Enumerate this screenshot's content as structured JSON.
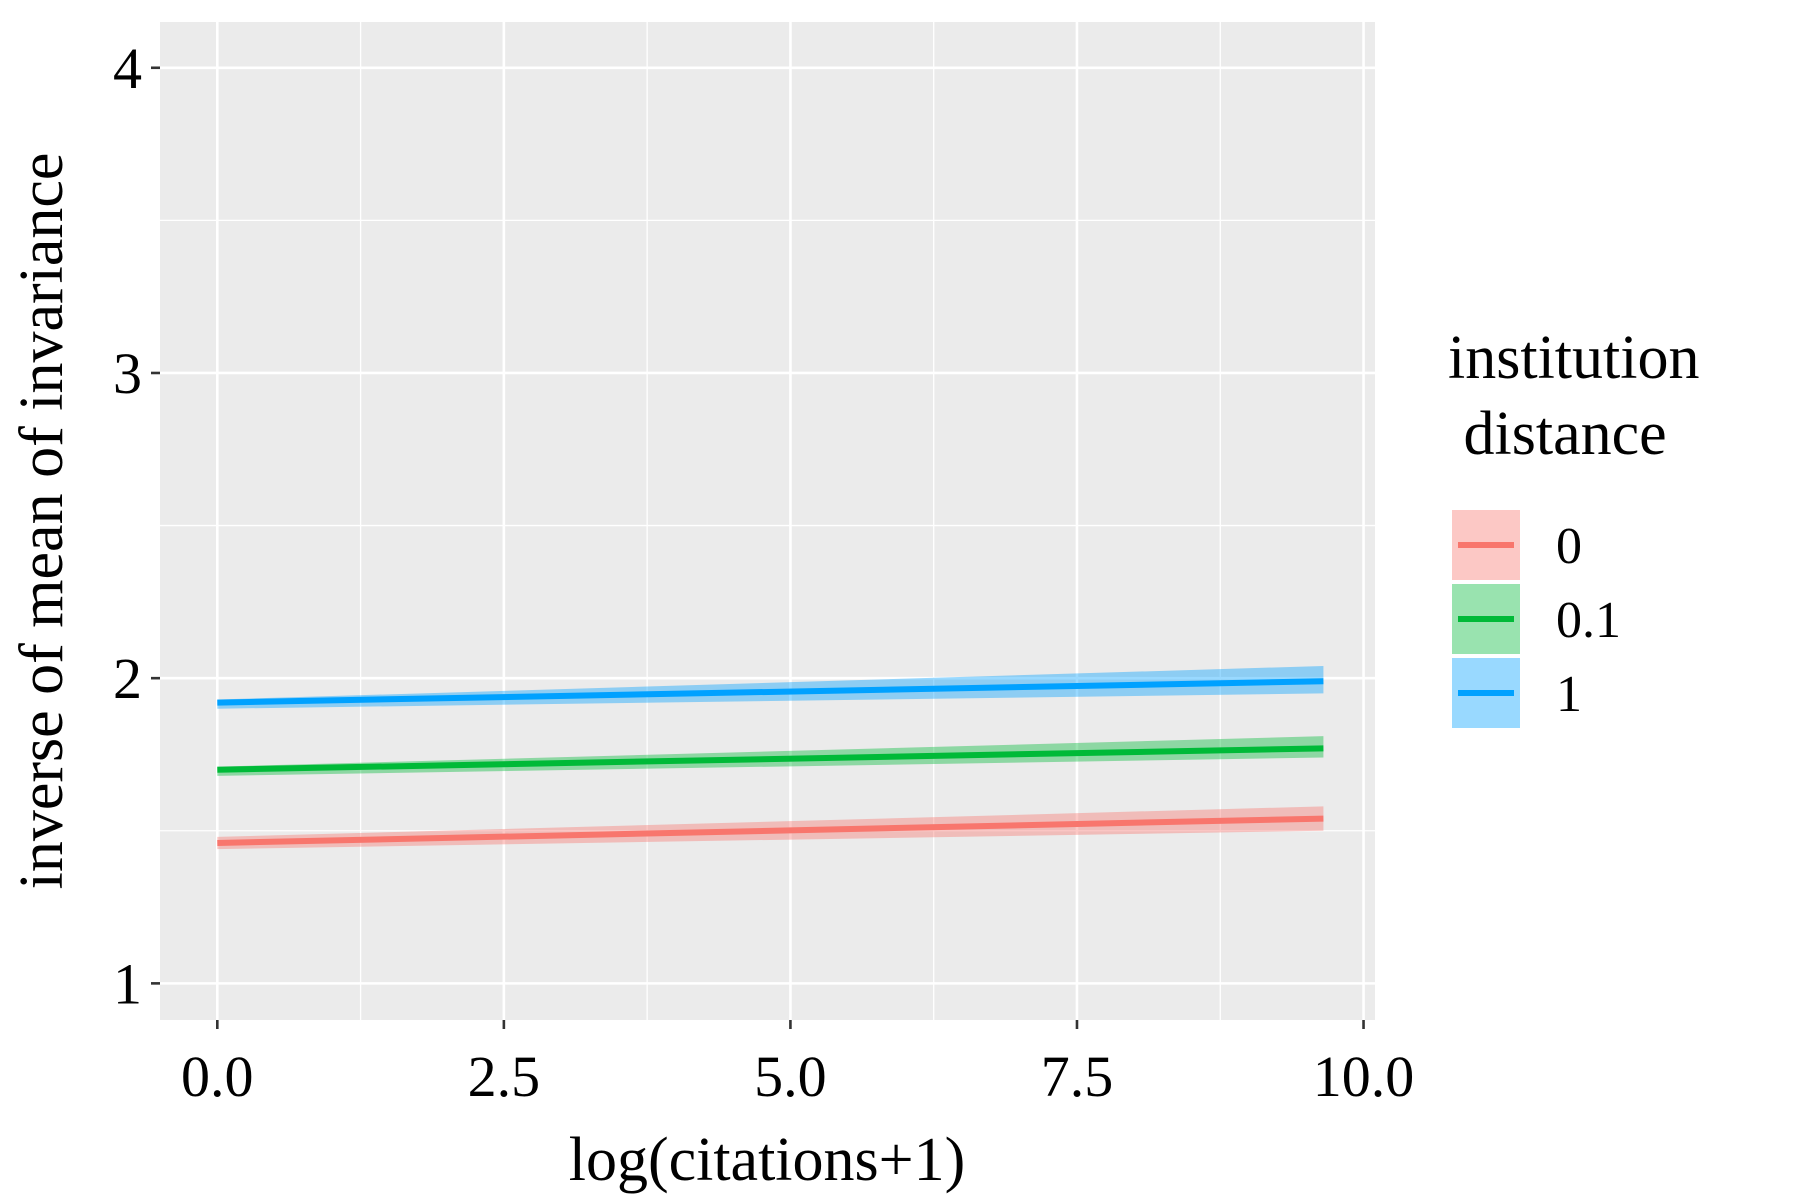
{
  "chart_data": {
    "type": "line",
    "title": "",
    "xlabel": "log(citations+1)",
    "ylabel": "inverse of mean of invariance",
    "xlim": [
      -0.5,
      10.1
    ],
    "ylim": [
      0.88,
      4.15
    ],
    "x_ticks": [
      0.0,
      2.5,
      5.0,
      7.5,
      10.0
    ],
    "x_tick_labels": [
      "0.0",
      "2.5",
      "5.0",
      "7.5",
      "10.0"
    ],
    "y_ticks": [
      1,
      2,
      3,
      4
    ],
    "y_tick_labels": [
      "1",
      "2",
      "3",
      "4"
    ],
    "grid": true,
    "legend": {
      "title_lines": [
        "institution",
        " distance"
      ],
      "position": "right"
    },
    "series": [
      {
        "name": "0",
        "color": "#F8766D",
        "x": [
          0,
          9.65
        ],
        "y": [
          1.46,
          1.54
        ],
        "ci_lower": [
          1.44,
          1.5
        ],
        "ci_upper": [
          1.48,
          1.58
        ]
      },
      {
        "name": "0.1",
        "color": "#00BA38",
        "x": [
          0,
          9.65
        ],
        "y": [
          1.7,
          1.77
        ],
        "ci_lower": [
          1.68,
          1.74
        ],
        "ci_upper": [
          1.71,
          1.81
        ]
      },
      {
        "name": "1",
        "color": "#00A1FF",
        "x": [
          0,
          9.65
        ],
        "y": [
          1.92,
          1.99
        ],
        "ci_lower": [
          1.9,
          1.95
        ],
        "ci_upper": [
          1.93,
          2.04
        ]
      }
    ]
  }
}
